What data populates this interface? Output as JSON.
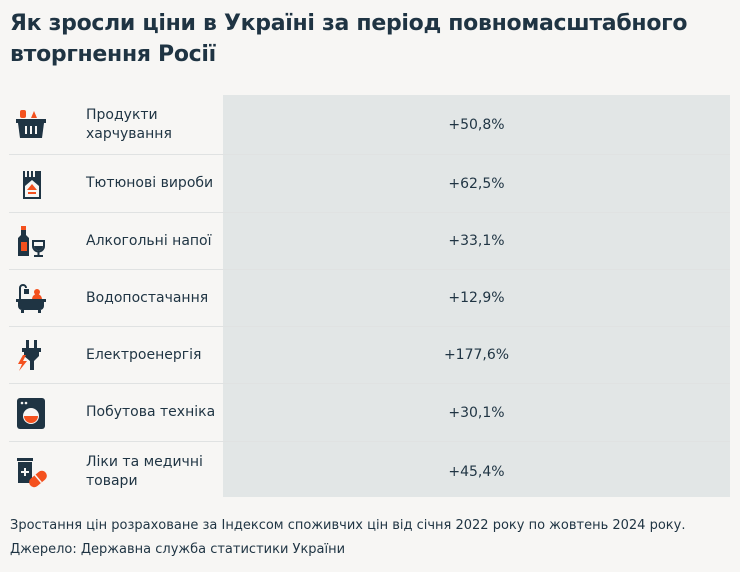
{
  "title": "Як зросли ціни в Україні за період повномасштабного вторгнення Росії",
  "colors": {
    "dark": "#1f3443",
    "accent": "#f4511e",
    "value_column": "#e2e6e6",
    "background": "#f7f6f4"
  },
  "rows": [
    {
      "icon": "grocery-basket-icon",
      "label": "Продукти харчування",
      "value": "+50,8%"
    },
    {
      "icon": "cigarettes-icon",
      "label": "Тютюнові вироби",
      "value": "+62,5%"
    },
    {
      "icon": "wine-bottle-glass-icon",
      "label": "Алкогольні напої",
      "value": "+33,1%"
    },
    {
      "icon": "bathtub-shower-icon",
      "label": "Водопостачання",
      "value": "+12,9%"
    },
    {
      "icon": "electric-plug-icon",
      "label": "Електроенергія",
      "value": "+177,6%"
    },
    {
      "icon": "washing-machine-icon",
      "label": "Побутова техніка",
      "value": "+30,1%"
    },
    {
      "icon": "medicine-pills-icon",
      "label": "Ліки та медичні товари",
      "value": "+45,4%"
    }
  ],
  "footnote": "Зростання цін розраховане за Індексом споживчих цін від січня 2022 року по жовтень 2024 року.",
  "source": "Джерело: Державна служба статистики України"
}
